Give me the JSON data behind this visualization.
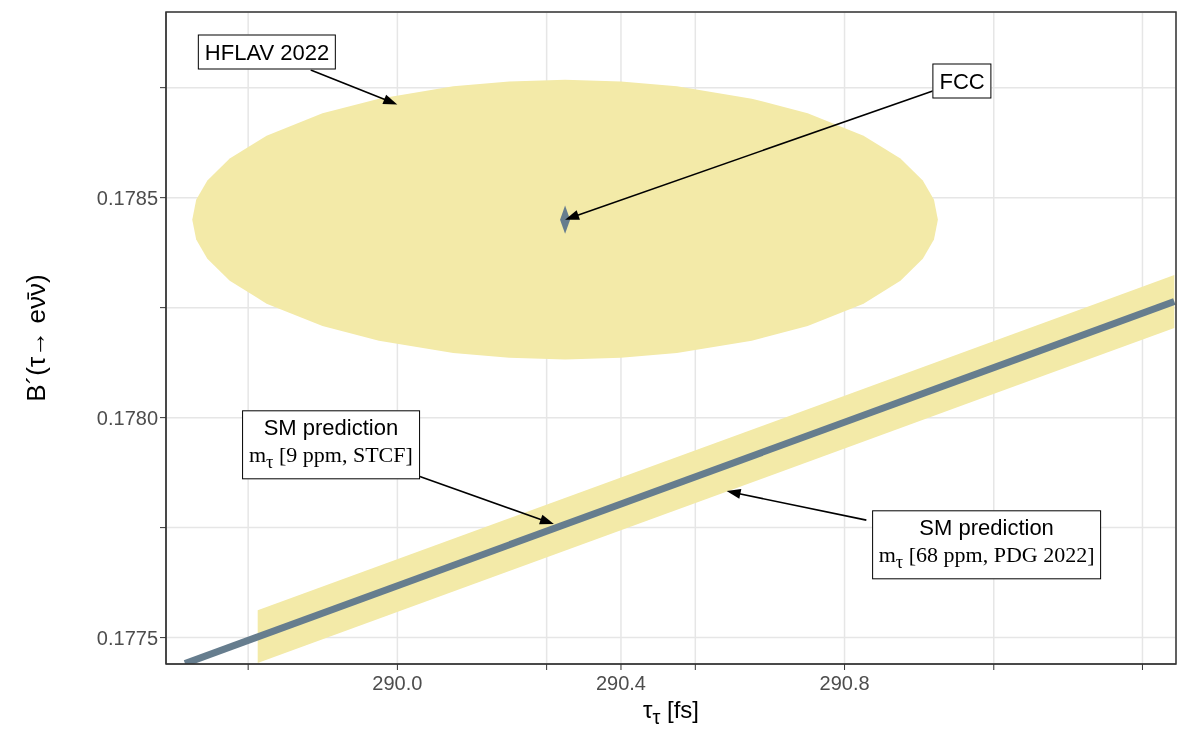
{
  "chart_data": {
    "type": "area",
    "xlabel": "τ$_{τ}$ [fs]",
    "ylabel": "B´(τ→ eν̄ν)",
    "xlim": [
      289.586,
      291.393
    ],
    "ylim": [
      0.17744,
      0.178922
    ],
    "xticks": [
      {
        "value": 289.733,
        "label": null
      },
      {
        "value": 290.0,
        "label": "290.0"
      },
      {
        "value": 290.267,
        "label": null
      },
      290.4,
      {
        "value": 290.533,
        "label": null
      },
      290.8,
      {
        "value": 291.067,
        "label": null
      },
      {
        "value": 291.333,
        "label": null
      }
    ],
    "yticks": [
      0.1775,
      {
        "value": 0.17775,
        "label": null
      },
      {
        "value": 0.178,
        "label": "0.1780"
      },
      {
        "value": 0.17825,
        "label": null
      },
      0.1785,
      {
        "value": 0.17875,
        "label": null
      }
    ],
    "grid": true,
    "series": [
      {
        "color": "#f3eaa8",
        "x": [
          289.633,
          289.64,
          289.66,
          289.7,
          289.766,
          289.866,
          289.967,
          290.1,
          290.2,
          290.3,
          290.4,
          290.5,
          290.634,
          290.734,
          290.834,
          290.9,
          290.94,
          290.96,
          290.967
        ],
        "values": [
          null,
          null,
          null,
          null,
          null,
          null,
          null,
          null,
          null,
          null,
          null,
          null,
          null,
          null,
          null,
          null,
          null,
          null,
          null
        ],
        "lower": [
          0.17845,
          0.178405,
          0.178361,
          0.178311,
          0.178259,
          0.178208,
          0.178175,
          0.178147,
          0.178136,
          0.178132,
          0.178136,
          0.178147,
          0.178175,
          0.178208,
          0.178259,
          0.178311,
          0.178361,
          0.178405,
          0.17845
        ],
        "upper": [
          0.17845,
          0.178495,
          0.178539,
          0.178589,
          0.178641,
          0.178692,
          0.178725,
          0.178753,
          0.178764,
          0.178768,
          0.178764,
          0.178753,
          0.178725,
          0.178692,
          0.178641,
          0.178589,
          0.178539,
          0.178495,
          0.17845
        ]
      },
      {
        "color": "#f3eaa8",
        "x": [
          289.75,
          291.39
        ],
        "values": [
          null,
          null
        ],
        "lower": [
          0.177442,
          0.178204
        ],
        "upper": [
          0.177562,
          0.178324
        ]
      },
      {
        "type": "line",
        "color": "#667d8e",
        "x": [
          289.62,
          291.39
        ],
        "values": [
          0.177441,
          0.178264
        ]
      },
      {
        "color": "#667d8e",
        "x": [
          290.291,
          290.3,
          290.309
        ],
        "values": [
          null,
          null,
          null
        ],
        "lower": [
          0.17845,
          0.178418,
          0.17845
        ],
        "upper": [
          0.17845,
          0.178482,
          0.17845
        ]
      }
    ],
    "annotations": [
      "HFLAV 2022",
      {
        "text": "FCC",
        "x": 290.3,
        "y": 0.17845
      },
      {
        "text": "SM prediction\nm$_{τ}$ [9 ppm, STCF]",
        "x": 290.28,
        "y": 0.177758
      },
      {
        "text": "SM prediction\nm$_{τ}$ [68 ppm, PDG 2022]",
        "x": 290.589,
        "y": 0.177833
      }
    ]
  }
}
